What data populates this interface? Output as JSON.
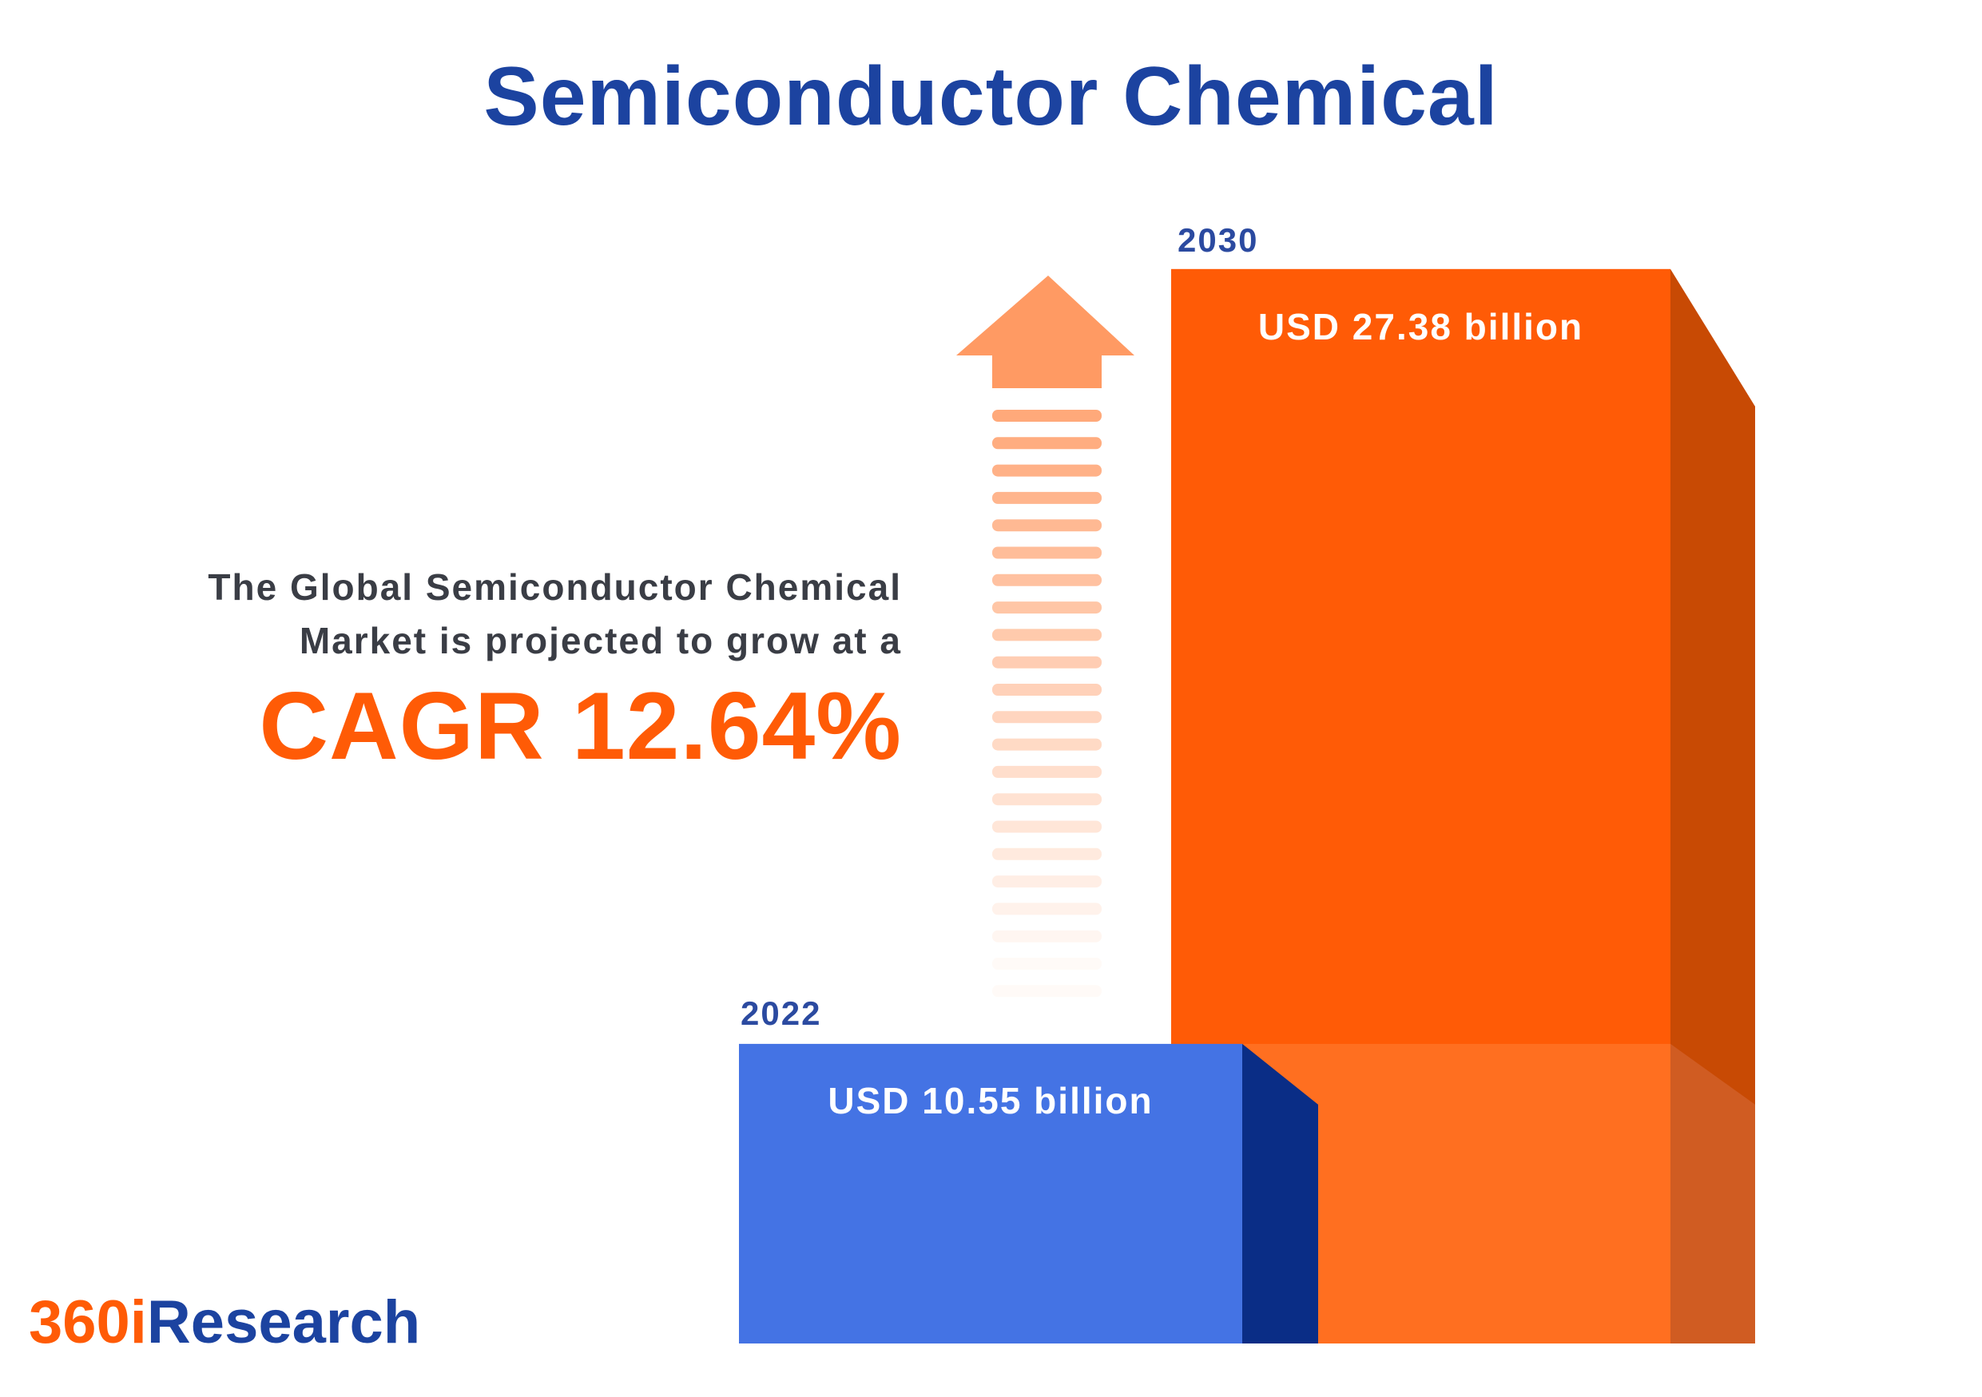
{
  "title": "Semiconductor Chemical",
  "description": {
    "line1": "The Global Semiconductor Chemical",
    "line2": "Market is projected to grow at a",
    "cagr": "CAGR 12.64%"
  },
  "logo": {
    "part1": "360i",
    "part2": "Research"
  },
  "colors": {
    "title": "#1c43a0",
    "orange": "#ff5b06",
    "blue": "#4473e4",
    "blue_dark": "#0a2d86",
    "arrow": "#ff9a63"
  },
  "chart_data": {
    "type": "bar",
    "categories": [
      "2022",
      "2030"
    ],
    "values": [
      10.55,
      27.38
    ],
    "labels": [
      "USD 10.55 billion",
      "USD 27.38 billion"
    ],
    "unit": "USD billion"
  }
}
